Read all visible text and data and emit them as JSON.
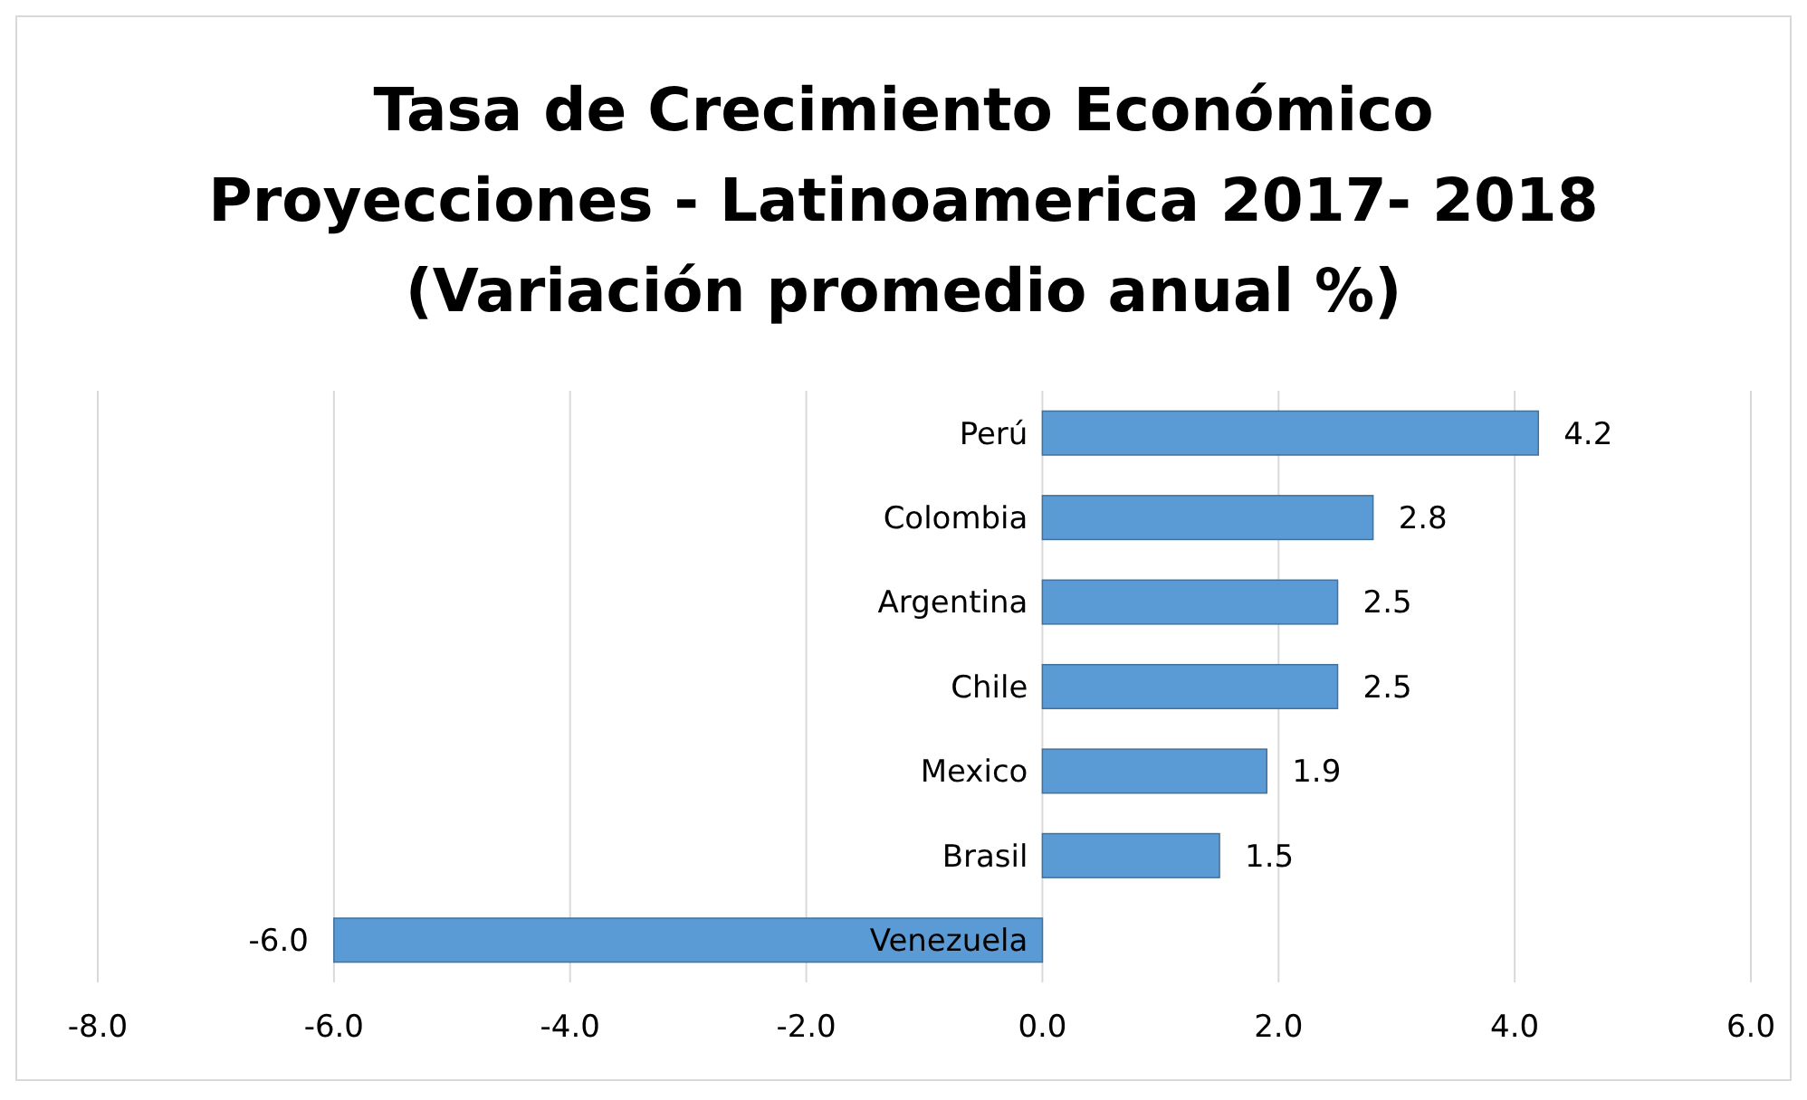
{
  "chart_data": {
    "type": "bar",
    "orientation": "horizontal",
    "title": "Tasa de Crecimiento Económico\nProyecciones - Latinoamerica 2017- 2018\n(Variación promedio anual %)",
    "categories": [
      "Perú",
      "Colombia",
      "Argentina",
      "Chile",
      "Mexico",
      "Brasil",
      "Venezuela"
    ],
    "values": [
      4.2,
      2.8,
      2.5,
      2.5,
      1.9,
      1.5,
      -6.0
    ],
    "color": "#5b9bd5",
    "xlim": [
      -8,
      6
    ],
    "xticks": [
      {
        "value": -8,
        "label": "-8.0"
      },
      {
        "value": -6,
        "label": "-6.0"
      },
      {
        "value": -4,
        "label": "-4.0"
      },
      {
        "value": -2,
        "label": "-2.0"
      },
      {
        "value": 0,
        "label": "0.0"
      },
      {
        "value": 2,
        "label": "2.0"
      },
      {
        "value": 4,
        "label": "4.0"
      },
      {
        "value": 6,
        "label": "6.0"
      }
    ],
    "value_labels": [
      "4.2",
      "2.8",
      "2.5",
      "2.5",
      "1.9",
      "1.5",
      "-6.0"
    ],
    "grid": "x"
  }
}
